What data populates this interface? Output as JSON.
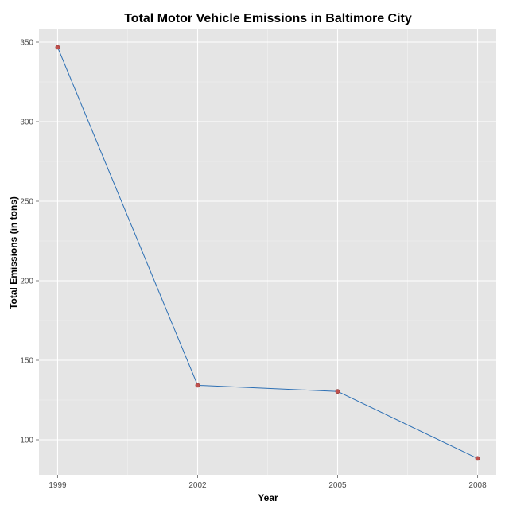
{
  "chart_data": {
    "type": "line",
    "title": "Total Motor Vehicle Emissions in Baltimore City",
    "xlabel": "Year",
    "ylabel": "Total Emissions (in tons)",
    "x": [
      1999,
      2002,
      2005,
      2008
    ],
    "series": [
      {
        "values": [
          346.8,
          134.3,
          130.4,
          88.3
        ]
      }
    ],
    "xlim": [
      1998.6,
      2008.4
    ],
    "ylim": [
      78,
      358
    ],
    "x_ticks": [
      1999,
      2002,
      2005,
      2008
    ],
    "x_tick_labels": [
      "1999",
      "2002",
      "2005",
      "2008"
    ],
    "y_ticks": [
      100,
      150,
      200,
      250,
      300,
      350
    ],
    "y_tick_labels": [
      "100",
      "150",
      "200",
      "250",
      "300",
      "350"
    ],
    "grid": true,
    "legend": "none",
    "colors": {
      "panel_background": "#e5e5e5",
      "grid_major": "#ffffff",
      "grid_minor": "#f2f2f2",
      "line": "#2c6fb4",
      "point": "#c0504d",
      "point_stroke": "#8b3a38"
    }
  }
}
